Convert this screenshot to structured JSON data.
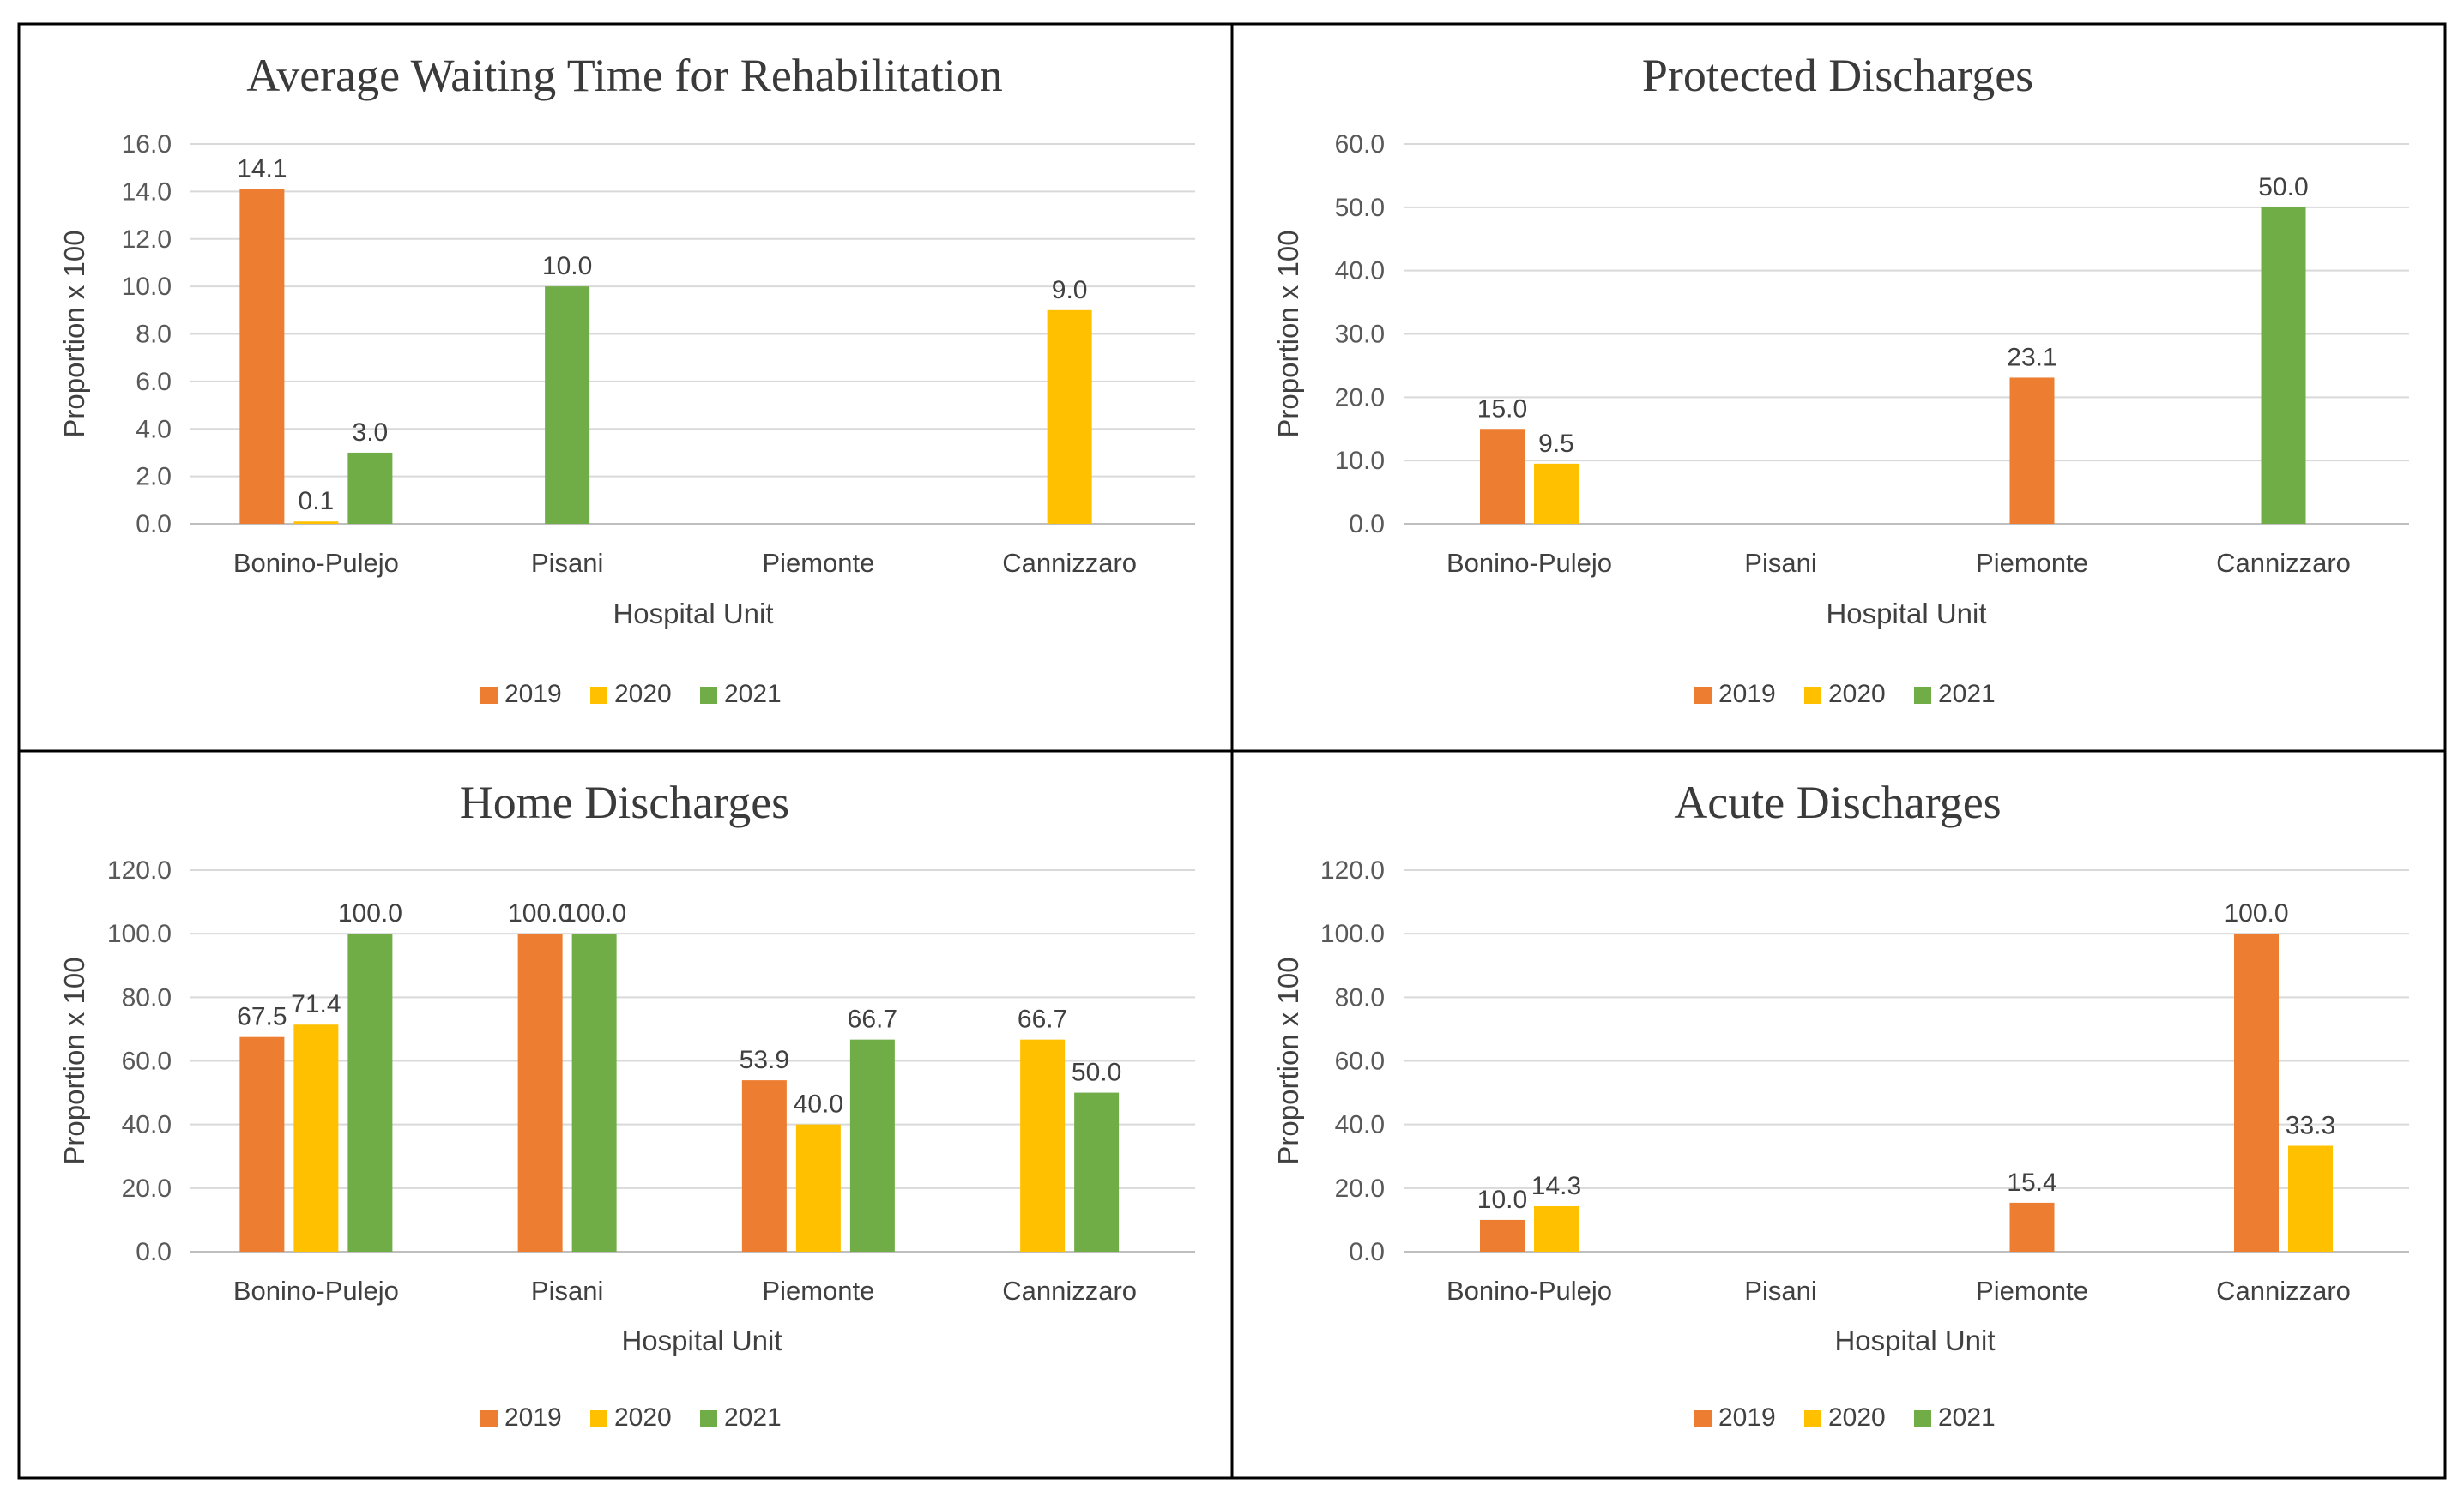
{
  "series_colors": {
    "2019": "#ED7D31",
    "2020": "#FFC000",
    "2021": "#70AD47"
  },
  "chart_data": [
    {
      "type": "bar",
      "title": "Average Waiting Time for Rehabilitation",
      "xlabel": "Hospital Unit",
      "ylabel": "Proportion x 100",
      "ylim": [
        0,
        16
      ],
      "ytick_step": 2,
      "ytick_labels": [
        "0.0",
        "2.0",
        "4.0",
        "6.0",
        "8.0",
        "10.0",
        "12.0",
        "14.0",
        "16.0"
      ],
      "legend_position": "bottom",
      "categories": [
        "Bonino-Pulejo",
        "Pisani",
        "Piemonte",
        "Cannizzaro"
      ],
      "series": [
        {
          "name": "2019",
          "values": [
            14.1,
            null,
            null,
            null
          ],
          "labels": [
            "14.1",
            null,
            null,
            null
          ]
        },
        {
          "name": "2020",
          "values": [
            0.1,
            null,
            null,
            9.0
          ],
          "labels": [
            "0.1",
            null,
            null,
            "9.0"
          ]
        },
        {
          "name": "2021",
          "values": [
            3.0,
            10.0,
            null,
            null
          ],
          "labels": [
            "3.0",
            "10.0",
            null,
            null
          ]
        }
      ]
    },
    {
      "type": "bar",
      "title": "Protected Discharges",
      "xlabel": "Hospital Unit",
      "ylabel": "Proportion x 100",
      "ylim": [
        0,
        60
      ],
      "ytick_step": 10,
      "ytick_labels": [
        "0.0",
        "10.0",
        "20.0",
        "30.0",
        "40.0",
        "50.0",
        "60.0"
      ],
      "legend_position": "bottom",
      "categories": [
        "Bonino-Pulejo",
        "Pisani",
        "Piemonte",
        "Cannizzaro"
      ],
      "series": [
        {
          "name": "2019",
          "values": [
            15.0,
            null,
            23.1,
            null
          ],
          "labels": [
            "15.0",
            null,
            "23.1",
            null
          ]
        },
        {
          "name": "2020",
          "values": [
            9.5,
            null,
            null,
            null
          ],
          "labels": [
            "9.5",
            null,
            null,
            null
          ]
        },
        {
          "name": "2021",
          "values": [
            null,
            null,
            null,
            50.0
          ],
          "labels": [
            null,
            null,
            null,
            "50.0"
          ]
        }
      ]
    },
    {
      "type": "bar",
      "title": "Home Discharges",
      "xlabel": "Hospital Unit",
      "ylabel": "Proportion x 100",
      "ylim": [
        0,
        120
      ],
      "ytick_step": 20,
      "ytick_labels": [
        "0.0",
        "20.0",
        "40.0",
        "60.0",
        "80.0",
        "100.0",
        "120.0"
      ],
      "legend_position": "bottom",
      "categories": [
        "Bonino-Pulejo",
        "Pisani",
        "Piemonte",
        "Cannizzaro"
      ],
      "series": [
        {
          "name": "2019",
          "values": [
            67.5,
            100.0,
            53.9,
            null
          ],
          "labels": [
            "67.5",
            "100.0",
            "53.9",
            null
          ]
        },
        {
          "name": "2020",
          "values": [
            71.4,
            null,
            40.0,
            66.7
          ],
          "labels": [
            "71.4",
            null,
            "40.0",
            "66.7"
          ]
        },
        {
          "name": "2021",
          "values": [
            100.0,
            100.0,
            66.7,
            50.0
          ],
          "labels": [
            "100.0",
            "100.0",
            "66.7",
            "50.0"
          ]
        }
      ]
    },
    {
      "type": "bar",
      "title": "Acute Discharges",
      "xlabel": "Hospital Unit",
      "ylabel": "Proportion x 100",
      "ylim": [
        0,
        120
      ],
      "ytick_step": 20,
      "ytick_labels": [
        "0.0",
        "20.0",
        "40.0",
        "60.0",
        "80.0",
        "100.0",
        "120.0"
      ],
      "legend_position": "bottom",
      "categories": [
        "Bonino-Pulejo",
        "Pisani",
        "Piemonte",
        "Cannizzaro"
      ],
      "series": [
        {
          "name": "2019",
          "values": [
            10.0,
            null,
            15.4,
            100.0
          ],
          "labels": [
            "10.0",
            null,
            "15.4",
            "100.0"
          ]
        },
        {
          "name": "2020",
          "values": [
            14.3,
            null,
            null,
            33.3
          ],
          "labels": [
            "14.3",
            null,
            null,
            "33.3"
          ]
        },
        {
          "name": "2021",
          "values": [
            null,
            null,
            null,
            null
          ],
          "labels": [
            null,
            null,
            null,
            null
          ]
        }
      ]
    }
  ]
}
